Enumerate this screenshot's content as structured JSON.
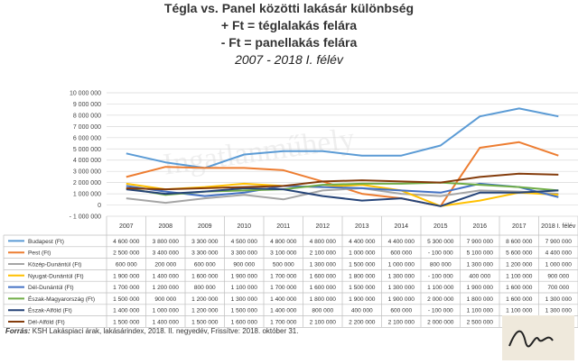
{
  "title": {
    "line1": "Tégla vs. Panel közötti  lakásár különbség",
    "line2": "+ Ft  =  téglalakás felára",
    "line3": "-  Ft  = panellakás felára",
    "line4": "2007 - 2018 I. félév"
  },
  "source": {
    "label": "Forrás:",
    "text": " KSH Lakáspiaci árak, lakásárindex, 2018. II. negyedév, Frissítve: 2018. október 31."
  },
  "watermark": "Ingatlanműhely",
  "logo_text": "Ingatlan műhely",
  "chart_data": {
    "type": "line",
    "title": "Tégla vs. Panel közötti  lakásár különbség",
    "categories": [
      "2007",
      "2008",
      "2009",
      "2010",
      "2011",
      "2012",
      "2013",
      "2014",
      "2015",
      "2016",
      "2017",
      "2018 I. félév"
    ],
    "ylim": [
      -1000000,
      10000000
    ],
    "yticks": [
      -1000000,
      0,
      1000000,
      2000000,
      3000000,
      4000000,
      5000000,
      6000000,
      7000000,
      8000000,
      9000000,
      10000000
    ],
    "ytick_labels": [
      "- 1 000 000",
      "0",
      "1 000 000",
      "2 000 000",
      "3 000 000",
      "4 000 000",
      "5 000 000",
      "6 000 000",
      "7 000 000",
      "8 000 000",
      "9 000 000",
      "10 000 000"
    ],
    "grid": true,
    "legend": "table-bottom",
    "series": [
      {
        "name": "Budapest (Ft)",
        "color": "#5b9bd5",
        "values": [
          4600000,
          3800000,
          3300000,
          4500000,
          4800000,
          4800000,
          4400000,
          4400000,
          5300000,
          7900000,
          8600000,
          7900000
        ],
        "labels": [
          "4 600 000",
          "3 800 000",
          "3 300 000",
          "4 500 000",
          "4 800 000",
          "4 800 000",
          "4 400 000",
          "4 400 000",
          "5 300 000",
          "7 900 000",
          "8 600 000",
          "7 900 000"
        ]
      },
      {
        "name": "Pest (Ft)",
        "color": "#ed7d31",
        "values": [
          2500000,
          3400000,
          3300000,
          3300000,
          3100000,
          2100000,
          1000000,
          600000,
          -100000,
          5100000,
          5600000,
          4400000
        ],
        "labels": [
          "2 500 000",
          "3 400 000",
          "3 300 000",
          "3 300 000",
          "3 100 000",
          "2 100 000",
          "1 000 000",
          "600 000",
          "- 100 000",
          "5 100 000",
          "5 600 000",
          "4 400 000"
        ]
      },
      {
        "name": "Közép-Dunántúl (Ft)",
        "color": "#a5a5a5",
        "values": [
          600000,
          200000,
          600000,
          900000,
          500000,
          1300000,
          1500000,
          1000000,
          800000,
          1300000,
          1200000,
          1000000
        ],
        "labels": [
          "600 000",
          "200 000",
          "600 000",
          "900 000",
          "500 000",
          "1 300 000",
          "1 500 000",
          "1 000 000",
          "800 000",
          "1 300 000",
          "1 200 000",
          "1 000 000"
        ]
      },
      {
        "name": "Nyugat-Dunántúl (Ft)",
        "color": "#ffc000",
        "values": [
          1900000,
          1400000,
          1600000,
          1900000,
          1700000,
          1600000,
          1800000,
          1300000,
          -100000,
          400000,
          1100000,
          900000
        ],
        "labels": [
          "1 900 000",
          "1 400 000",
          "1 600 000",
          "1 900 000",
          "1 700 000",
          "1 600 000",
          "1 800 000",
          "1 300 000",
          "- 100 000",
          "400 000",
          "1 100 000",
          "900 000"
        ]
      },
      {
        "name": "Dél-Dunántúl (Ft)",
        "color": "#4472c4",
        "values": [
          1700000,
          1200000,
          800000,
          1100000,
          1700000,
          1600000,
          1500000,
          1300000,
          1100000,
          1900000,
          1600000,
          700000
        ],
        "labels": [
          "1 700 000",
          "1 200 000",
          "800 000",
          "1 100 000",
          "1 700 000",
          "1 600 000",
          "1 500 000",
          "1 300 000",
          "1 100 000",
          "1 900 000",
          "1 600 000",
          "700 000"
        ]
      },
      {
        "name": "Észak-Magyarország (Ft)",
        "color": "#70ad47",
        "values": [
          1500000,
          900000,
          1200000,
          1300000,
          1400000,
          1800000,
          1900000,
          1900000,
          2000000,
          1800000,
          1600000,
          1300000
        ],
        "labels": [
          "1 500 000",
          "900 000",
          "1 200 000",
          "1 300 000",
          "1 400 000",
          "1 800 000",
          "1 900 000",
          "1 900 000",
          "2 000 000",
          "1 800 000",
          "1 600 000",
          "1 300 000"
        ]
      },
      {
        "name": "Észak-Alföld (Ft)",
        "color": "#264478",
        "values": [
          1400000,
          1000000,
          1200000,
          1500000,
          1400000,
          800000,
          400000,
          600000,
          -100000,
          1100000,
          1100000,
          1300000
        ],
        "labels": [
          "1 400 000",
          "1 000 000",
          "1 200 000",
          "1 500 000",
          "1 400 000",
          "800 000",
          "400 000",
          "600 000",
          "- 100 000",
          "1 100 000",
          "1 100 000",
          "1 300 000"
        ]
      },
      {
        "name": "Dél-Alföld (Ft)",
        "color": "#843c0c",
        "values": [
          1500000,
          1400000,
          1500000,
          1600000,
          1700000,
          2100000,
          2200000,
          2100000,
          2000000,
          2500000,
          2800000,
          2700000
        ],
        "labels": [
          "1 500 000",
          "1 400 000",
          "1 500 000",
          "1 600 000",
          "1 700 000",
          "2 100 000",
          "2 200 000",
          "2 100 000",
          "2 000 000",
          "2 500 000",
          "2 800 000",
          "2 700 000"
        ]
      }
    ]
  }
}
